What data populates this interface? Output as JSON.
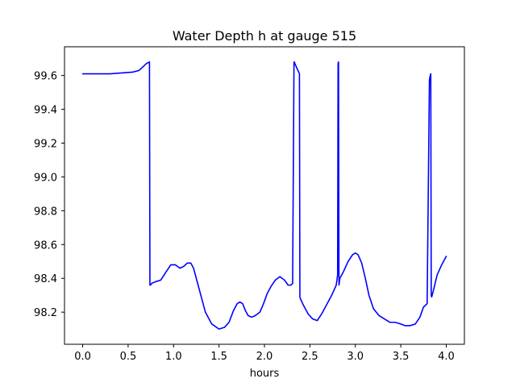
{
  "chart_data": {
    "type": "line",
    "title": "Water Depth h at gauge 515",
    "xlabel": "hours",
    "ylabel": "",
    "xlim": [
      -0.2,
      4.2
    ],
    "ylim": [
      98.01,
      99.77
    ],
    "xticks": [
      0.0,
      0.5,
      1.0,
      1.5,
      2.0,
      2.5,
      3.0,
      3.5,
      4.0
    ],
    "xtick_labels": [
      "0.0",
      "0.5",
      "1.0",
      "1.5",
      "2.0",
      "2.5",
      "3.0",
      "3.5",
      "4.0"
    ],
    "yticks": [
      98.2,
      98.4,
      98.6,
      98.8,
      99.0,
      99.2,
      99.4,
      99.6
    ],
    "ytick_labels": [
      "98.2",
      "98.4",
      "98.6",
      "98.8",
      "99.0",
      "99.2",
      "99.4",
      "99.6"
    ],
    "grid": false,
    "series": [
      {
        "color": "#0000ff",
        "x": [
          0.0,
          0.3,
          0.55,
          0.62,
          0.66,
          0.7,
          0.735,
          0.74,
          0.745,
          0.76,
          0.8,
          0.86,
          0.92,
          0.97,
          1.02,
          1.07,
          1.11,
          1.15,
          1.19,
          1.22,
          1.25,
          1.3,
          1.35,
          1.42,
          1.5,
          1.56,
          1.61,
          1.66,
          1.7,
          1.73,
          1.76,
          1.79,
          1.82,
          1.86,
          1.9,
          1.95,
          1.99,
          2.03,
          2.07,
          2.12,
          2.17,
          2.22,
          2.26,
          2.29,
          2.31,
          2.325,
          2.33,
          2.335,
          2.36,
          2.385,
          2.39,
          2.395,
          2.43,
          2.48,
          2.53,
          2.58,
          2.63,
          2.69,
          2.74,
          2.79,
          2.805,
          2.81,
          2.815,
          2.82,
          2.825,
          2.83,
          2.87,
          2.92,
          2.97,
          3.0,
          3.03,
          3.07,
          3.11,
          3.15,
          3.2,
          3.26,
          3.32,
          3.38,
          3.44,
          3.5,
          3.55,
          3.6,
          3.66,
          3.71,
          3.75,
          3.79,
          3.815,
          3.82,
          3.825,
          3.83,
          3.835,
          3.84,
          3.845,
          3.86,
          3.9,
          3.95,
          4.0
        ],
        "y": [
          99.61,
          99.61,
          99.62,
          99.63,
          99.65,
          99.67,
          99.68,
          98.36,
          98.36,
          98.37,
          98.38,
          98.39,
          98.44,
          98.48,
          98.48,
          98.46,
          98.47,
          98.49,
          98.49,
          98.46,
          98.4,
          98.3,
          98.2,
          98.13,
          98.1,
          98.11,
          98.14,
          98.21,
          98.25,
          98.26,
          98.25,
          98.21,
          98.18,
          98.17,
          98.18,
          98.2,
          98.25,
          98.31,
          98.35,
          98.39,
          98.41,
          98.39,
          98.36,
          98.36,
          98.37,
          99.68,
          99.68,
          99.67,
          99.64,
          99.61,
          98.29,
          98.28,
          98.24,
          98.19,
          98.16,
          98.15,
          98.19,
          98.25,
          98.3,
          98.36,
          98.42,
          99.67,
          99.68,
          98.36,
          98.38,
          98.4,
          98.44,
          98.5,
          98.54,
          98.55,
          98.54,
          98.49,
          98.4,
          98.3,
          98.22,
          98.18,
          98.16,
          98.14,
          98.14,
          98.13,
          98.12,
          98.12,
          98.13,
          98.17,
          98.23,
          98.25,
          99.57,
          99.59,
          99.6,
          99.61,
          98.3,
          98.29,
          98.3,
          98.33,
          98.42,
          98.48,
          98.53
        ]
      }
    ]
  }
}
